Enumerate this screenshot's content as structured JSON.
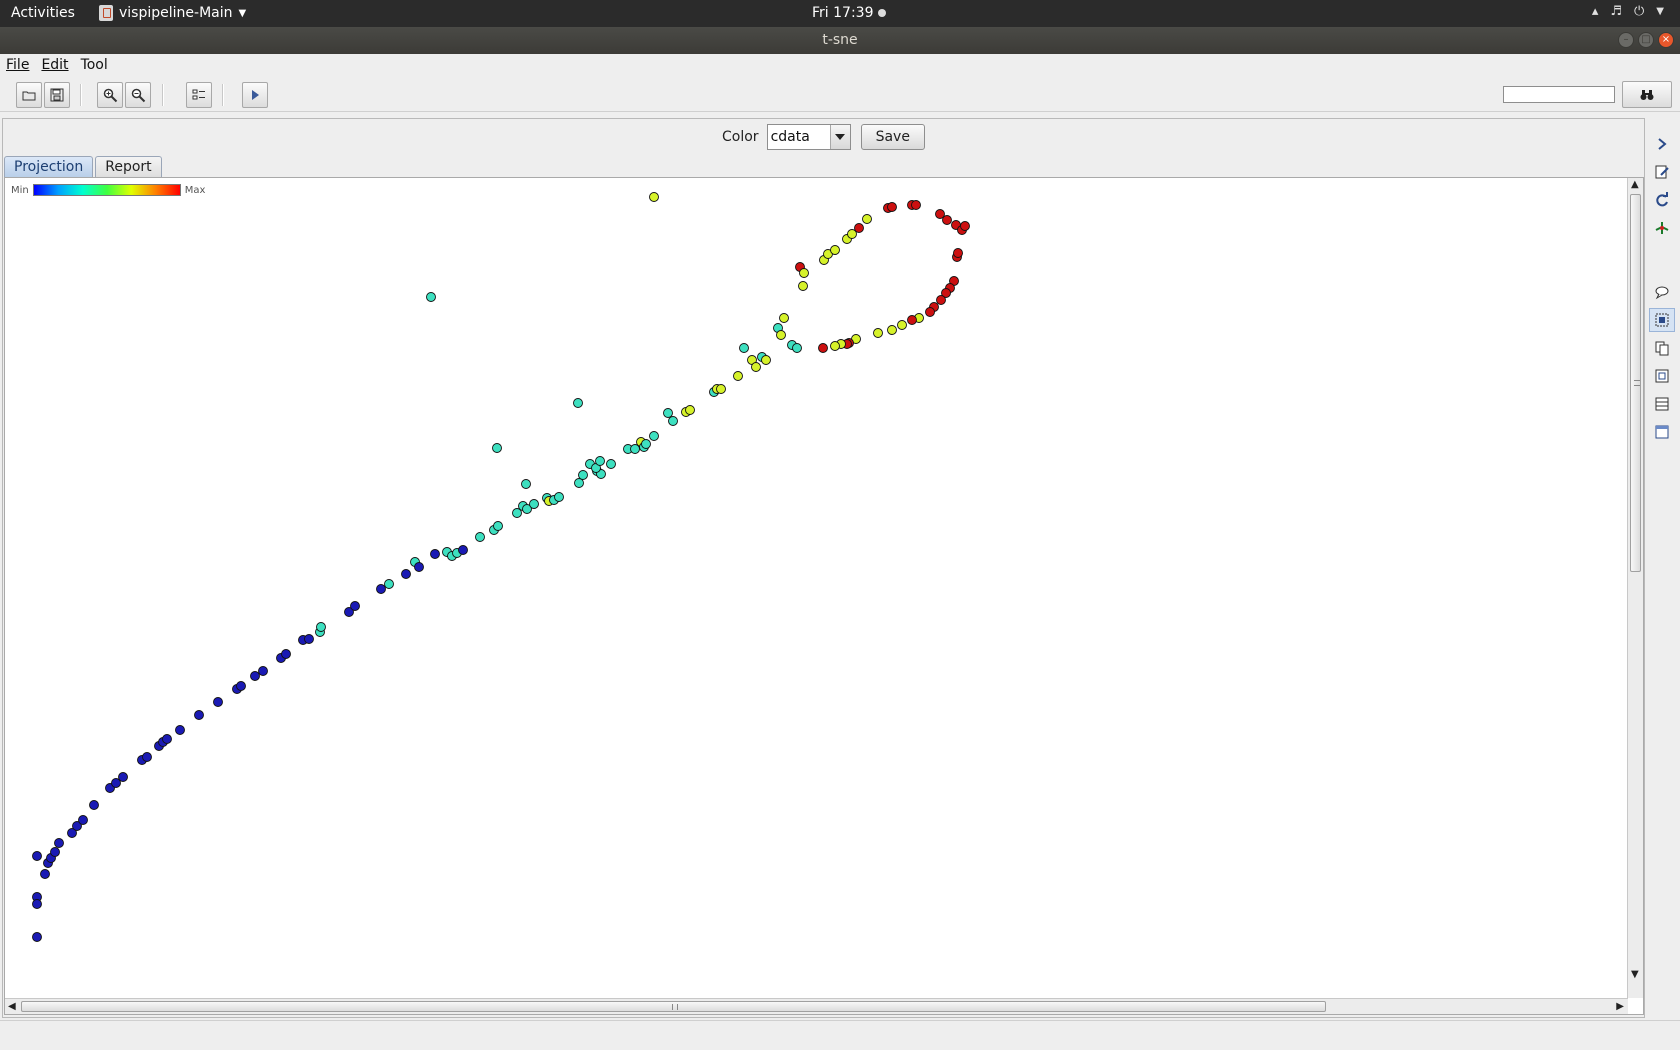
{
  "system_bar": {
    "activities_label": "Activities",
    "app_name": "vispipeline-Main",
    "clock": "Fri 17:39"
  },
  "window": {
    "title": "t-sne"
  },
  "menu": {
    "file": "File",
    "edit": "Edit",
    "tool": "Tool"
  },
  "toolbar": {
    "buttons": [
      "open-icon",
      "save-icon",
      "zoom-in-icon",
      "zoom-out-icon",
      "properties-icon",
      "play-icon"
    ],
    "search_value": "",
    "find_icon": "binoculars-icon"
  },
  "color_control": {
    "label": "Color",
    "selected": "cdata",
    "save_label": "Save"
  },
  "tabs": [
    {
      "label": "Projection",
      "active": true
    },
    {
      "label": "Report",
      "active": false
    }
  ],
  "legend": {
    "min_label": "Min",
    "max_label": "Max",
    "colors": [
      "#0000ff",
      "#00a0ff",
      "#00ffd0",
      "#40ff40",
      "#e0ff00",
      "#ff8000",
      "#ff0000"
    ]
  },
  "side_toolbar": [
    "expand-icon",
    "edit-icon",
    "refresh-icon",
    "tree-icon",
    "comment-icon",
    "select-icon",
    "copy-icon",
    "frame-icon",
    "table-icon",
    "window-icon"
  ],
  "chart_data": {
    "type": "scatter",
    "title": "",
    "xlabel": "",
    "ylabel": "",
    "color_scale": {
      "min": "Min",
      "max": "Max"
    },
    "color_levels": {
      "low": "#1a1ab4",
      "mid": "#3de0c0",
      "high": "#d6f22a",
      "max": "#cc1010"
    },
    "points": [
      [
        36,
        903,
        "low"
      ],
      [
        36,
        910,
        "low"
      ],
      [
        36,
        943,
        "low"
      ],
      [
        36,
        862,
        "low"
      ],
      [
        44,
        880,
        "low"
      ],
      [
        47,
        869,
        "low"
      ],
      [
        50,
        864,
        "low"
      ],
      [
        54,
        858,
        "low"
      ],
      [
        58,
        849,
        "low"
      ],
      [
        71,
        839,
        "low"
      ],
      [
        76,
        832,
        "low"
      ],
      [
        82,
        826,
        "low"
      ],
      [
        93,
        811,
        "low"
      ],
      [
        109,
        794,
        "low"
      ],
      [
        115,
        789,
        "low"
      ],
      [
        122,
        783,
        "low"
      ],
      [
        141,
        766,
        "low"
      ],
      [
        146,
        763,
        "low"
      ],
      [
        158,
        752,
        "low"
      ],
      [
        162,
        748,
        "low"
      ],
      [
        166,
        745,
        "low"
      ],
      [
        179,
        736,
        "low"
      ],
      [
        198,
        721,
        "low"
      ],
      [
        217,
        708,
        "low"
      ],
      [
        236,
        695,
        "low"
      ],
      [
        240,
        692,
        "low"
      ],
      [
        254,
        682,
        "low"
      ],
      [
        262,
        677,
        "low"
      ],
      [
        280,
        664,
        "low"
      ],
      [
        285,
        660,
        "low"
      ],
      [
        302,
        646,
        "low"
      ],
      [
        308,
        645,
        "low"
      ],
      [
        319,
        638,
        "mid"
      ],
      [
        320,
        633,
        "mid"
      ],
      [
        348,
        618,
        "low"
      ],
      [
        354,
        612,
        "low"
      ],
      [
        380,
        595,
        "low"
      ],
      [
        388,
        590,
        "mid"
      ],
      [
        405,
        580,
        "low"
      ],
      [
        414,
        568,
        "mid"
      ],
      [
        418,
        573,
        "low"
      ],
      [
        434,
        560,
        "low"
      ],
      [
        446,
        558,
        "mid"
      ],
      [
        451,
        562,
        "mid"
      ],
      [
        456,
        559,
        "mid"
      ],
      [
        462,
        556,
        "low"
      ],
      [
        479,
        543,
        "mid"
      ],
      [
        493,
        536,
        "mid"
      ],
      [
        497,
        532,
        "mid"
      ],
      [
        516,
        519,
        "mid"
      ],
      [
        522,
        512,
        "mid"
      ],
      [
        526,
        515,
        "mid"
      ],
      [
        533,
        510,
        "mid"
      ],
      [
        546,
        504,
        "mid"
      ],
      [
        548,
        507,
        "high"
      ],
      [
        553,
        506,
        "mid"
      ],
      [
        558,
        503,
        "mid"
      ],
      [
        578,
        489,
        "mid"
      ],
      [
        582,
        481,
        "mid"
      ],
      [
        589,
        470,
        "mid"
      ],
      [
        596,
        477,
        "mid"
      ],
      [
        600,
        480,
        "mid"
      ],
      [
        595,
        474,
        "mid"
      ],
      [
        599,
        467,
        "mid"
      ],
      [
        610,
        470,
        "mid"
      ],
      [
        525,
        490,
        "mid"
      ],
      [
        496,
        454,
        "mid"
      ],
      [
        577,
        409,
        "mid"
      ],
      [
        430,
        303,
        "mid"
      ],
      [
        653,
        203,
        "high"
      ],
      [
        627,
        455,
        "mid"
      ],
      [
        634,
        455,
        "mid"
      ],
      [
        640,
        448,
        "high"
      ],
      [
        643,
        453,
        "mid"
      ],
      [
        645,
        450,
        "mid"
      ],
      [
        653,
        442,
        "mid"
      ],
      [
        667,
        419,
        "mid"
      ],
      [
        672,
        427,
        "mid"
      ],
      [
        685,
        418,
        "high"
      ],
      [
        689,
        416,
        "high"
      ],
      [
        713,
        398,
        "mid"
      ],
      [
        716,
        395,
        "high"
      ],
      [
        720,
        395,
        "high"
      ],
      [
        737,
        382,
        "high"
      ],
      [
        743,
        354,
        "mid"
      ],
      [
        751,
        366,
        "high"
      ],
      [
        755,
        373,
        "high"
      ],
      [
        761,
        363,
        "mid"
      ],
      [
        765,
        366,
        "high"
      ],
      [
        777,
        334,
        "mid"
      ],
      [
        780,
        341,
        "high"
      ],
      [
        783,
        324,
        "high"
      ],
      [
        791,
        351,
        "mid"
      ],
      [
        796,
        354,
        "mid"
      ],
      [
        802,
        292,
        "high"
      ],
      [
        799,
        273,
        "max"
      ],
      [
        803,
        279,
        "high"
      ],
      [
        823,
        266,
        "high"
      ],
      [
        827,
        260,
        "high"
      ],
      [
        834,
        256,
        "high"
      ],
      [
        846,
        245,
        "high"
      ],
      [
        851,
        240,
        "high"
      ],
      [
        858,
        234,
        "max"
      ],
      [
        866,
        225,
        "high"
      ],
      [
        887,
        214,
        "max"
      ],
      [
        891,
        213,
        "max"
      ],
      [
        911,
        211,
        "max"
      ],
      [
        915,
        211,
        "max"
      ],
      [
        939,
        220,
        "max"
      ],
      [
        946,
        226,
        "max"
      ],
      [
        955,
        231,
        "max"
      ],
      [
        961,
        236,
        "max"
      ],
      [
        964,
        232,
        "max"
      ],
      [
        956,
        263,
        "max"
      ],
      [
        957,
        259,
        "max"
      ],
      [
        953,
        287,
        "max"
      ],
      [
        949,
        294,
        "max"
      ],
      [
        945,
        299,
        "max"
      ],
      [
        940,
        306,
        "max"
      ],
      [
        933,
        313,
        "max"
      ],
      [
        929,
        318,
        "max"
      ],
      [
        918,
        324,
        "high"
      ],
      [
        911,
        326,
        "max"
      ],
      [
        901,
        331,
        "high"
      ],
      [
        891,
        336,
        "high"
      ],
      [
        877,
        339,
        "high"
      ],
      [
        855,
        345,
        "high"
      ],
      [
        848,
        349,
        "max"
      ],
      [
        846,
        350,
        "max"
      ],
      [
        840,
        350,
        "high"
      ],
      [
        834,
        352,
        "high"
      ],
      [
        822,
        354,
        "max"
      ]
    ]
  }
}
